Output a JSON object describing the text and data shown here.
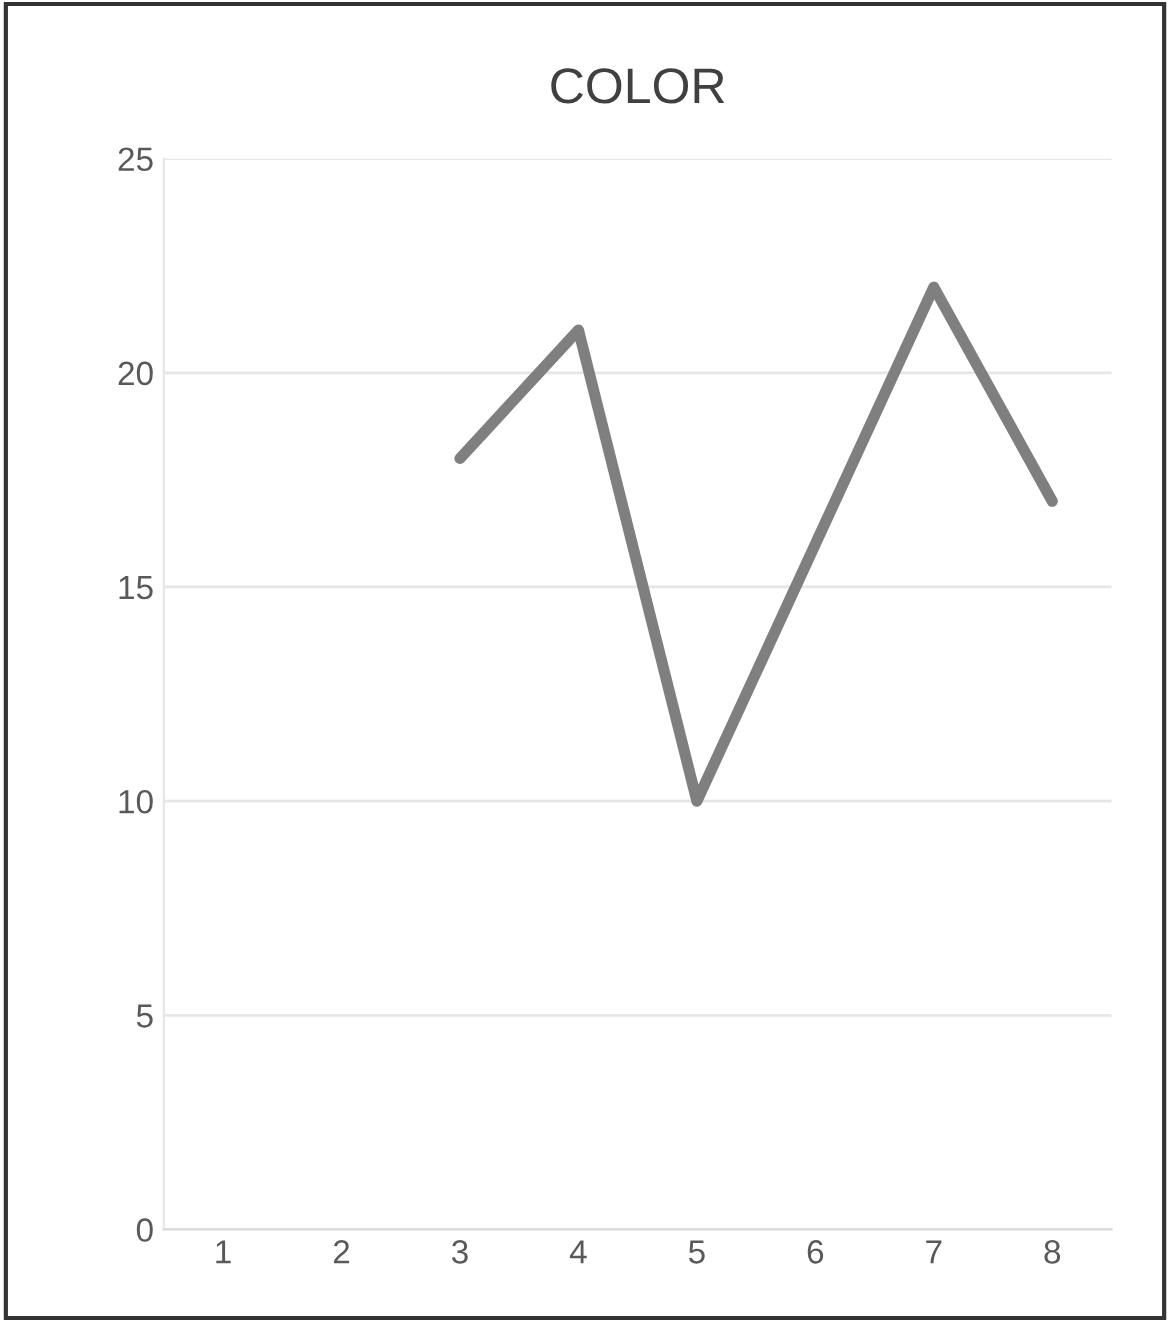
{
  "chart_data": {
    "type": "line",
    "title": "COLOR",
    "categories": [
      "1",
      "2",
      "3",
      "4",
      "5",
      "6",
      "7",
      "8"
    ],
    "series": [
      {
        "color": "#7f7f7f",
        "values": [
          null,
          null,
          18,
          21,
          10,
          16,
          22,
          17
        ]
      }
    ],
    "ylim": [
      0,
      25
    ],
    "yticks": [
      0,
      5,
      10,
      15,
      20,
      25
    ],
    "grid": "y",
    "marker": "none",
    "line_style": "solid"
  }
}
